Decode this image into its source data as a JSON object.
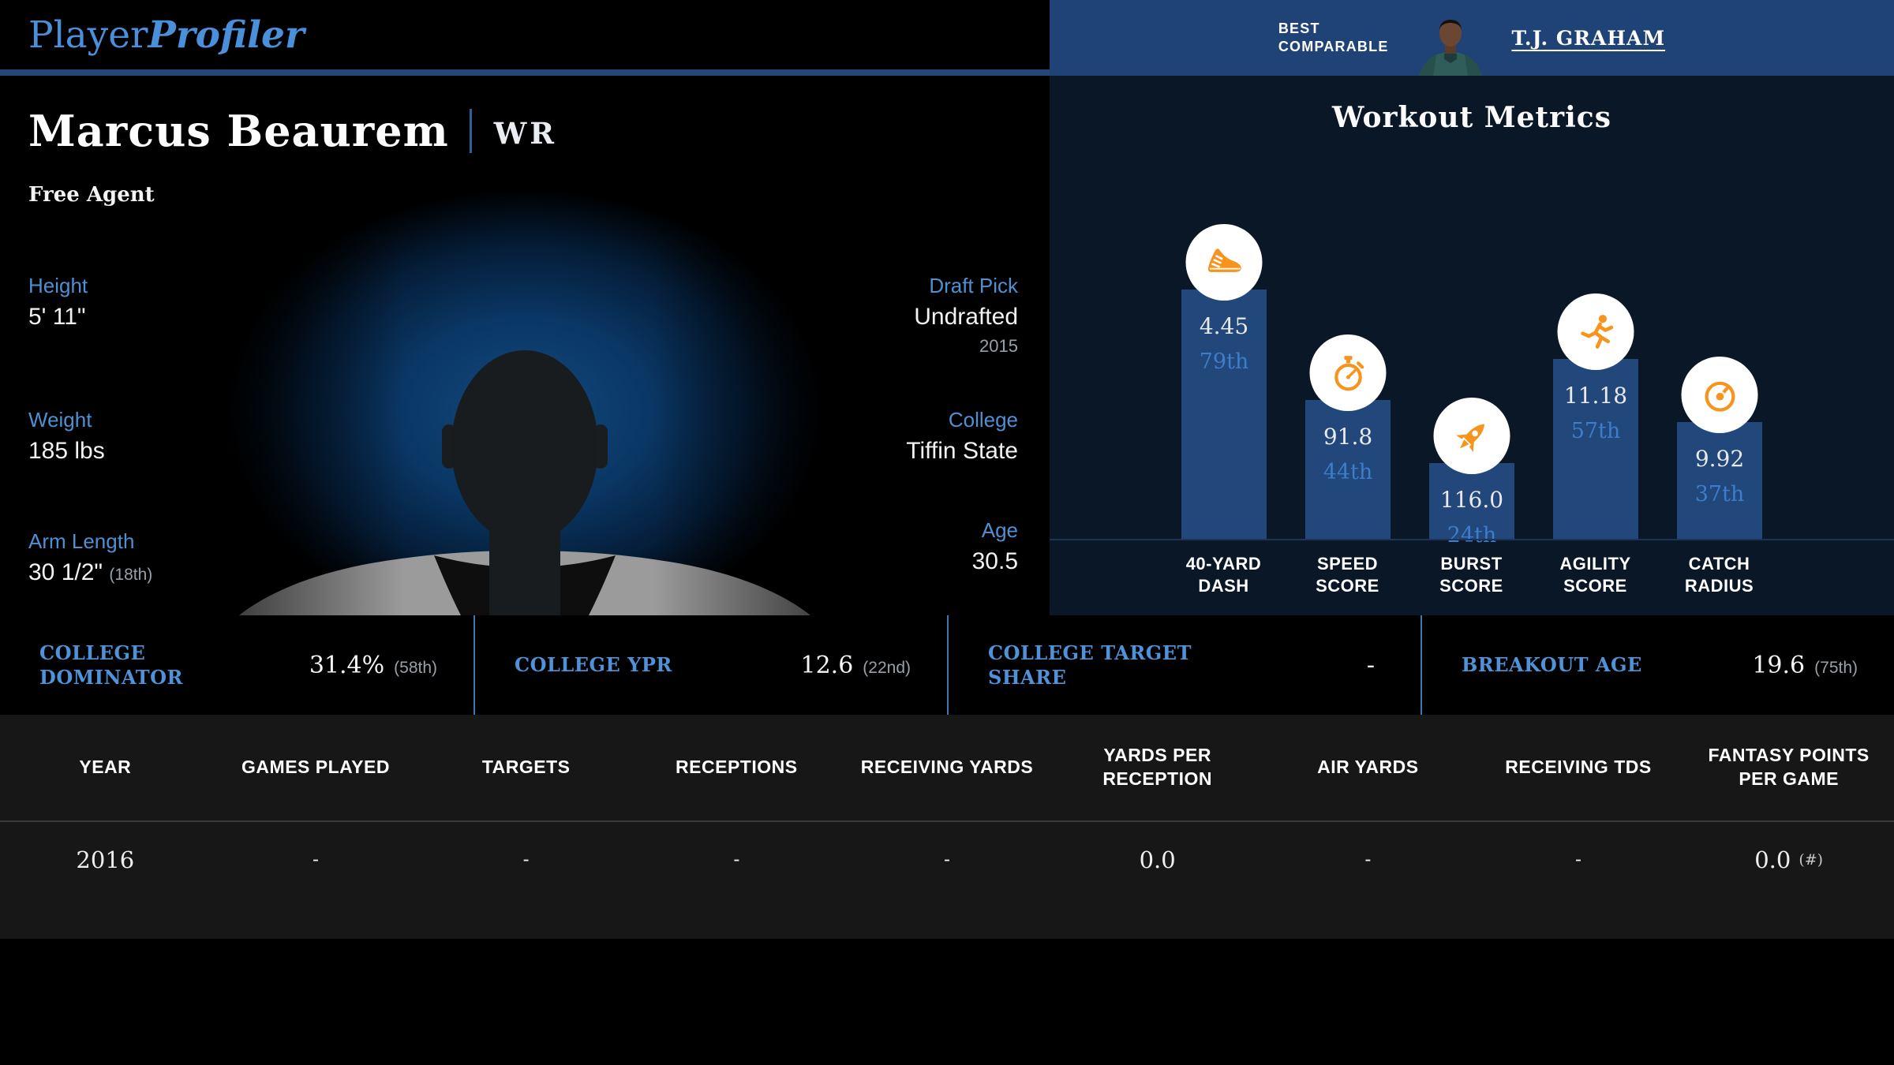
{
  "brand": {
    "logo_part1": "Player",
    "logo_part2": "Profiler"
  },
  "header": {
    "best_comparable_line1": "BEST",
    "best_comparable_line2": "COMPARABLE",
    "comparable_name": "T.J. GRAHAM"
  },
  "player": {
    "name": "Marcus Beaurem",
    "position": "WR",
    "team_status": "Free Agent",
    "attributes_left": [
      {
        "label": "Height",
        "value": "5' 11\"",
        "percentile": ""
      },
      {
        "label": "Weight",
        "value": "185 lbs",
        "percentile": ""
      },
      {
        "label": "Arm Length",
        "value": "30 1/2\"",
        "percentile": "(18th)"
      }
    ],
    "attributes_right": [
      {
        "label": "Draft Pick",
        "value": "Undrafted",
        "sub": "2015"
      },
      {
        "label": "College",
        "value": "Tiffin State",
        "sub": ""
      },
      {
        "label": "Age",
        "value": "30.5",
        "sub": ""
      }
    ]
  },
  "chart_data": {
    "type": "bar",
    "title": "Workout Metrics",
    "categories": [
      "40-Yard Dash",
      "Speed Score",
      "Burst Score",
      "Agility Score",
      "Catch Radius"
    ],
    "category_lines": [
      [
        "40-YARD",
        "DASH"
      ],
      [
        "SPEED",
        "SCORE"
      ],
      [
        "BURST",
        "SCORE"
      ],
      [
        "AGILITY",
        "SCORE"
      ],
      [
        "CATCH",
        "RADIUS"
      ]
    ],
    "values": [
      4.45,
      91.8,
      116.0,
      11.18,
      9.92
    ],
    "value_labels": [
      "4.45",
      "91.8",
      "116.0",
      "11.18",
      "9.92"
    ],
    "percentiles": [
      79,
      44,
      24,
      57,
      37
    ],
    "percentile_labels": [
      "79th",
      "44th",
      "24th",
      "57th",
      "37th"
    ],
    "ylabel": "percentile",
    "ylim": [
      0,
      100
    ],
    "grid": false,
    "legend": false,
    "icons": [
      "running-shoe",
      "stopwatch",
      "rocket",
      "sprinter",
      "gauge"
    ],
    "bar_color": "#21477b",
    "value_text_color": "#e9e9e9",
    "percentile_text_color": "#3d7dcb",
    "icon_color": "#f7941e",
    "panel_background": "#0a1727"
  },
  "college_stats": [
    {
      "label": "COLLEGE DOMINATOR",
      "value": "31.4%",
      "percentile": "(58th)"
    },
    {
      "label": "COLLEGE YPR",
      "value": "12.6",
      "percentile": "(22nd)"
    },
    {
      "label": "COLLEGE TARGET SHARE",
      "value": "-",
      "percentile": ""
    },
    {
      "label": "BREAKOUT AGE",
      "value": "19.6",
      "percentile": "(75th)"
    }
  ],
  "season_table": {
    "columns": [
      "YEAR",
      "GAMES PLAYED",
      "TARGETS",
      "RECEPTIONS",
      "RECEIVING YARDS",
      "YARDS PER RECEPTION",
      "AIR YARDS",
      "RECEIVING TDS",
      "FANTASY POINTS PER GAME"
    ],
    "rows": [
      {
        "cells": [
          "2016",
          "-",
          "-",
          "-",
          "-",
          "0.0",
          "-",
          "-",
          "0.0"
        ],
        "last_cell_suffix": "(#)"
      }
    ]
  },
  "colors": {
    "accent_blue": "#4e90d2",
    "header_blue": "#1f4377",
    "logo_blue": "#4a8fd9",
    "divider_blue": "#3f74b5",
    "orange": "#f7941e",
    "table_background": "#171717"
  }
}
